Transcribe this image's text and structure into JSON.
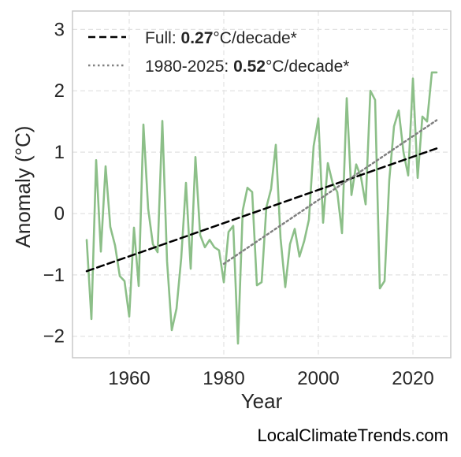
{
  "chart_data": {
    "type": "line",
    "title": "",
    "xlabel": "Year",
    "ylabel": "Anomaly (°C)",
    "xlim": [
      1948,
      2028
    ],
    "ylim": [
      -2.35,
      3.3
    ],
    "xticks": [
      1960,
      1980,
      2000,
      2020
    ],
    "yticks": [
      -2,
      -1,
      0,
      1,
      2,
      3
    ],
    "ytick_labels": [
      "−2",
      "−1",
      "0",
      "1",
      "2",
      "3"
    ],
    "grid": true,
    "legend_position": "top-left",
    "series": [
      {
        "color": "#8cbf88",
        "x": [
          1951,
          1952,
          1953,
          1954,
          1955,
          1956,
          1957,
          1958,
          1959,
          1960,
          1961,
          1962,
          1963,
          1964,
          1965,
          1966,
          1967,
          1968,
          1969,
          1970,
          1971,
          1972,
          1973,
          1974,
          1975,
          1976,
          1977,
          1978,
          1979,
          1980,
          1981,
          1982,
          1983,
          1984,
          1985,
          1986,
          1987,
          1988,
          1989,
          1990,
          1991,
          1992,
          1993,
          1994,
          1995,
          1996,
          1997,
          1998,
          1999,
          2000,
          2001,
          2002,
          2003,
          2004,
          2005,
          2006,
          2007,
          2008,
          2009,
          2010,
          2011,
          2012,
          2013,
          2014,
          2015,
          2016,
          2017,
          2018,
          2019,
          2020,
          2021,
          2022,
          2023,
          2024,
          2025
        ],
        "y": [
          -0.43,
          -1.72,
          0.87,
          -0.62,
          0.77,
          -0.22,
          -0.52,
          -1.02,
          -1.1,
          -1.68,
          -0.23,
          -1.18,
          1.45,
          0.08,
          -0.5,
          -0.63,
          1.51,
          -0.78,
          -1.9,
          -1.55,
          -0.72,
          0.5,
          -0.9,
          0.92,
          -0.35,
          -0.55,
          -0.43,
          -0.55,
          -0.6,
          -1.12,
          -0.3,
          -0.2,
          -2.12,
          0.05,
          0.42,
          0.35,
          -1.17,
          -1.12,
          0.1,
          0.4,
          1.12,
          -0.4,
          -1.2,
          -0.5,
          -0.25,
          -0.7,
          -0.45,
          -0.1,
          1.1,
          1.55,
          -0.15,
          0.82,
          0.5,
          0.35,
          -0.32,
          1.88,
          0.3,
          0.8,
          0.6,
          0.15,
          2.0,
          1.85,
          -1.22,
          -1.1,
          0.55,
          1.42,
          1.68,
          1.0,
          0.62,
          2.2,
          0.58,
          1.58,
          1.5,
          2.3,
          2.3
        ]
      },
      {
        "name": "Full",
        "style": "dashed",
        "color": "#000000",
        "x": [
          1951,
          2025
        ],
        "y": [
          -0.94,
          1.06
        ]
      },
      {
        "name": "1980-2025",
        "style": "dotted",
        "color": "#808080",
        "x": [
          1980,
          2025
        ],
        "y": [
          -0.82,
          1.52
        ]
      }
    ],
    "legend": [
      {
        "prefix": "Full: ",
        "value": "0.27",
        "suffix": "°C/decade*"
      },
      {
        "prefix": "1980-2025: ",
        "value": "0.52",
        "suffix": "°C/decade*"
      }
    ]
  },
  "watermark": "LocalClimateTrends.com"
}
